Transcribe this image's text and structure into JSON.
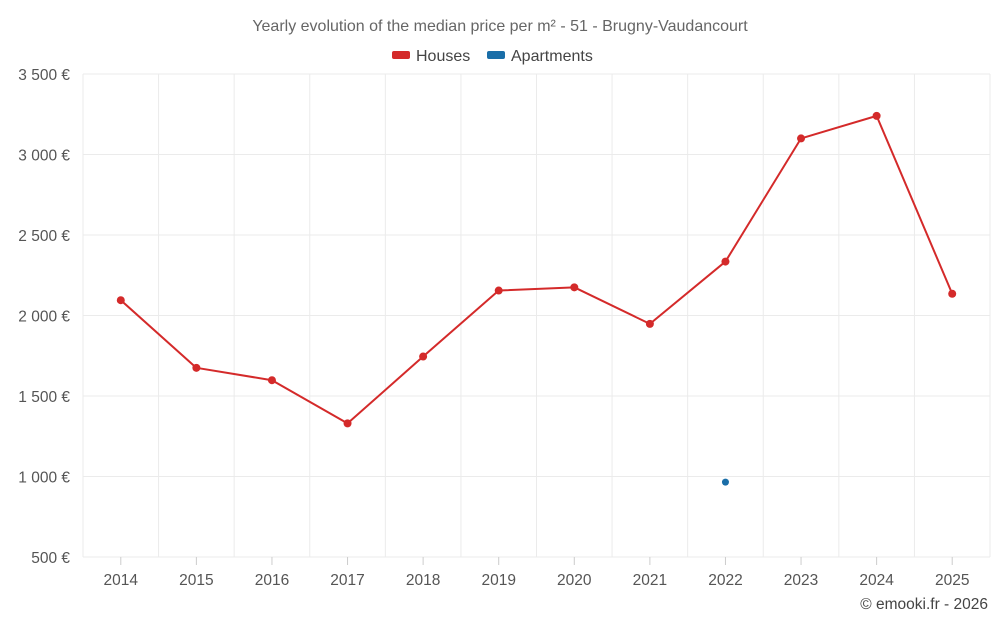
{
  "chart_data": {
    "type": "line",
    "title": "Yearly evolution of the median price per m² - 51 - Brugny-Vaudancourt",
    "xlabel": "",
    "ylabel": "",
    "categories": [
      "2014",
      "2015",
      "2016",
      "2017",
      "2018",
      "2019",
      "2020",
      "2021",
      "2022",
      "2023",
      "2024",
      "2025"
    ],
    "ylim": [
      500,
      3500
    ],
    "yticks": [
      500,
      1000,
      1500,
      2000,
      2500,
      3000,
      3500
    ],
    "ytick_labels": [
      "500 €",
      "1 000 €",
      "1 500 €",
      "2 000 €",
      "2 500 €",
      "3 000 €",
      "3 500 €"
    ],
    "grid": true,
    "legend_position": "top-center",
    "series": [
      {
        "name": "Houses",
        "color": "#d42a2a",
        "values": [
          2095,
          1675,
          1598,
          1330,
          1745,
          2155,
          2175,
          1948,
          2335,
          3100,
          3240,
          2135
        ]
      },
      {
        "name": "Apartments",
        "color": "#1a6ea8",
        "values": [
          null,
          null,
          null,
          null,
          null,
          null,
          null,
          null,
          965,
          null,
          null,
          null
        ]
      }
    ],
    "credit": "© emooki.fr - 2026"
  }
}
